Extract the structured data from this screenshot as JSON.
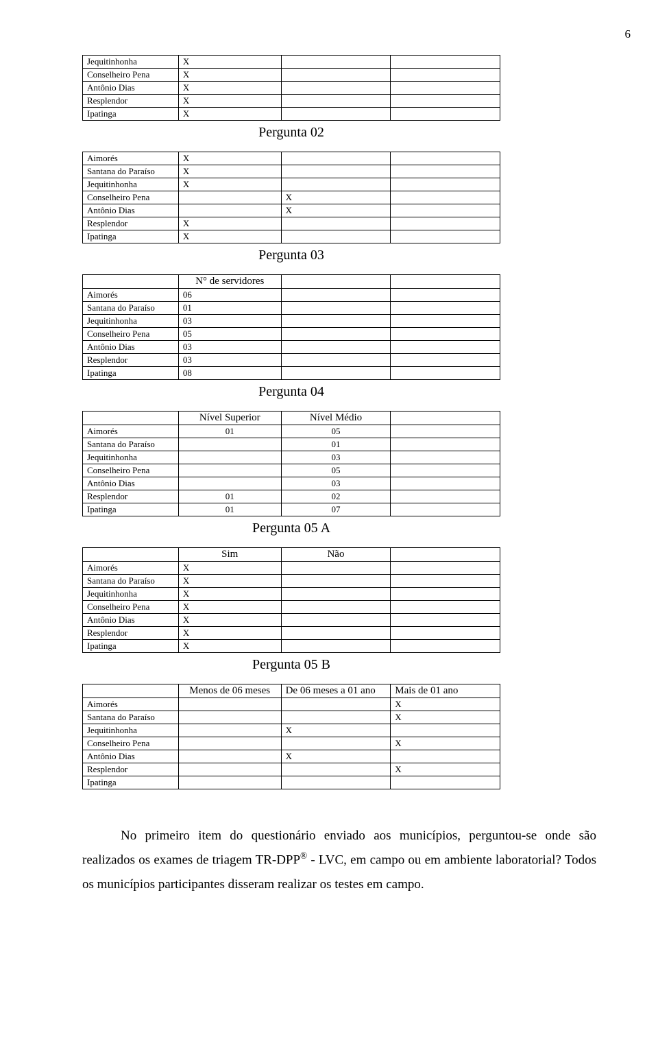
{
  "page_number": "6",
  "municipalities": [
    "Aimorés",
    "Santana do Paraíso",
    "Jequitinhonha",
    "Conselheiro Pena",
    "Antônio Dias",
    "Resplendor",
    "Ipatinga"
  ],
  "mark": "X",
  "table1": {
    "rows": [
      {
        "label": "Jequitinhonha",
        "a": "X",
        "b": "",
        "c": ""
      },
      {
        "label": "Conselheiro Pena",
        "a": "X",
        "b": "",
        "c": ""
      },
      {
        "label": "Antônio Dias",
        "a": "X",
        "b": "",
        "c": ""
      },
      {
        "label": "Resplendor",
        "a": "X",
        "b": "",
        "c": ""
      },
      {
        "label": "Ipatinga",
        "a": "X",
        "b": "",
        "c": ""
      }
    ],
    "title": "Pergunta 02"
  },
  "table2": {
    "rows": [
      {
        "label": "Aimorés",
        "a": "X",
        "b": "",
        "c": ""
      },
      {
        "label": "Santana do Paraíso",
        "a": "X",
        "b": "",
        "c": ""
      },
      {
        "label": "Jequitinhonha",
        "a": "X",
        "b": "",
        "c": ""
      },
      {
        "label": "Conselheiro Pena",
        "a": "",
        "b": "X",
        "c": ""
      },
      {
        "label": "Antônio Dias",
        "a": "",
        "b": "X",
        "c": ""
      },
      {
        "label": "Resplendor",
        "a": "X",
        "b": "",
        "c": ""
      },
      {
        "label": "Ipatinga",
        "a": "X",
        "b": "",
        "c": ""
      }
    ],
    "title": "Pergunta 03"
  },
  "table3": {
    "header_a": "N° de servidores",
    "rows": [
      {
        "label": "Aimorés",
        "a": "06",
        "b": "",
        "c": ""
      },
      {
        "label": "Santana do Paraíso",
        "a": "01",
        "b": "",
        "c": ""
      },
      {
        "label": "Jequitinhonha",
        "a": "03",
        "b": "",
        "c": ""
      },
      {
        "label": "Conselheiro Pena",
        "a": "05",
        "b": "",
        "c": ""
      },
      {
        "label": "Antônio Dias",
        "a": "03",
        "b": "",
        "c": ""
      },
      {
        "label": "Resplendor",
        "a": "03",
        "b": "",
        "c": ""
      },
      {
        "label": "Ipatinga",
        "a": "08",
        "b": "",
        "c": ""
      }
    ],
    "title": "Pergunta 04"
  },
  "table4": {
    "header_a": "Nível Superior",
    "header_b": "Nível Médio",
    "rows": [
      {
        "label": "Aimorés",
        "a": "01",
        "b": "05",
        "c": ""
      },
      {
        "label": "Santana do Paraíso",
        "a": "",
        "b": "01",
        "c": ""
      },
      {
        "label": "Jequitinhonha",
        "a": "",
        "b": "03",
        "c": ""
      },
      {
        "label": "Conselheiro Pena",
        "a": "",
        "b": "05",
        "c": ""
      },
      {
        "label": "Antônio Dias",
        "a": "",
        "b": "03",
        "c": ""
      },
      {
        "label": "Resplendor",
        "a": "01",
        "b": "02",
        "c": ""
      },
      {
        "label": "Ipatinga",
        "a": "01",
        "b": "07",
        "c": ""
      }
    ],
    "title": "Pergunta 05 A"
  },
  "table5": {
    "header_a": "Sim",
    "header_b": "Não",
    "rows": [
      {
        "label": "Aimorés",
        "a": "X",
        "b": "",
        "c": ""
      },
      {
        "label": "Santana do Paraíso",
        "a": "X",
        "b": "",
        "c": ""
      },
      {
        "label": "Jequitinhonha",
        "a": "X",
        "b": "",
        "c": ""
      },
      {
        "label": "Conselheiro Pena",
        "a": "X",
        "b": "",
        "c": ""
      },
      {
        "label": "Antônio Dias",
        "a": "X",
        "b": "",
        "c": ""
      },
      {
        "label": "Resplendor",
        "a": "X",
        "b": "",
        "c": ""
      },
      {
        "label": "Ipatinga",
        "a": "X",
        "b": "",
        "c": ""
      }
    ],
    "title": "Pergunta 05 B"
  },
  "table6": {
    "header_a": "Menos de 06 meses",
    "header_b": "De 06 meses a 01 ano",
    "header_c": "Mais de 01 ano",
    "rows": [
      {
        "label": "Aimorés",
        "a": "",
        "b": "",
        "c": "X"
      },
      {
        "label": "Santana do Paraíso",
        "a": "",
        "b": "",
        "c": "X"
      },
      {
        "label": "Jequitinhonha",
        "a": "",
        "b": "X",
        "c": ""
      },
      {
        "label": "Conselheiro Pena",
        "a": "",
        "b": "",
        "c": "X"
      },
      {
        "label": "Antônio Dias",
        "a": "",
        "b": "X",
        "c": ""
      },
      {
        "label": "Resplendor",
        "a": "",
        "b": "",
        "c": "X"
      },
      {
        "label": "Ipatinga",
        "a": "",
        "b": "",
        "c": ""
      }
    ]
  },
  "paragraph": {
    "p1a": "No primeiro item do questionário enviado aos municípios, perguntou-se onde são realizados os exames de triagem TR-DPP",
    "sup": "®",
    "p1b": " - LVC, em campo ou em ambiente laboratorial? Todos os municípios participantes disseram realizar os testes em campo."
  }
}
